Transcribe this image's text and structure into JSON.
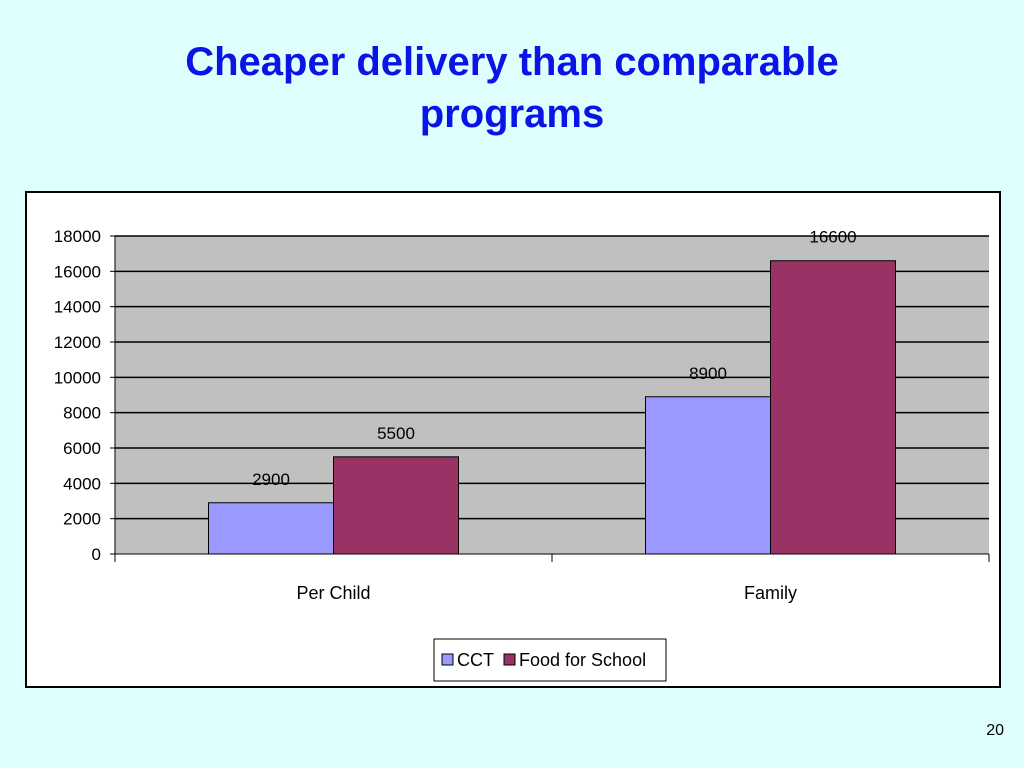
{
  "slide": {
    "title_line1": "Cheaper delivery than comparable",
    "title_line2": "programs",
    "page_number": "20"
  },
  "colors": {
    "background": "#dfffff",
    "title": "#0a14e6",
    "plot_area": "#c0c0c0",
    "cct": "#9999ff",
    "food_for_school": "#993366"
  },
  "chart_data": {
    "type": "bar",
    "title": "",
    "xlabel": "",
    "ylabel": "",
    "categories": [
      "Per Child",
      "Family"
    ],
    "series": [
      {
        "name": "CCT",
        "values": [
          2900,
          8900
        ],
        "color": "#9999ff"
      },
      {
        "name": "Food for School",
        "values": [
          5500,
          16600
        ],
        "color": "#993366"
      }
    ],
    "ylim": [
      0,
      18000
    ],
    "yticks": [
      0,
      2000,
      4000,
      6000,
      8000,
      10000,
      12000,
      14000,
      16000,
      18000
    ],
    "grid": true,
    "legend": "bottom-center",
    "data_labels": true
  }
}
